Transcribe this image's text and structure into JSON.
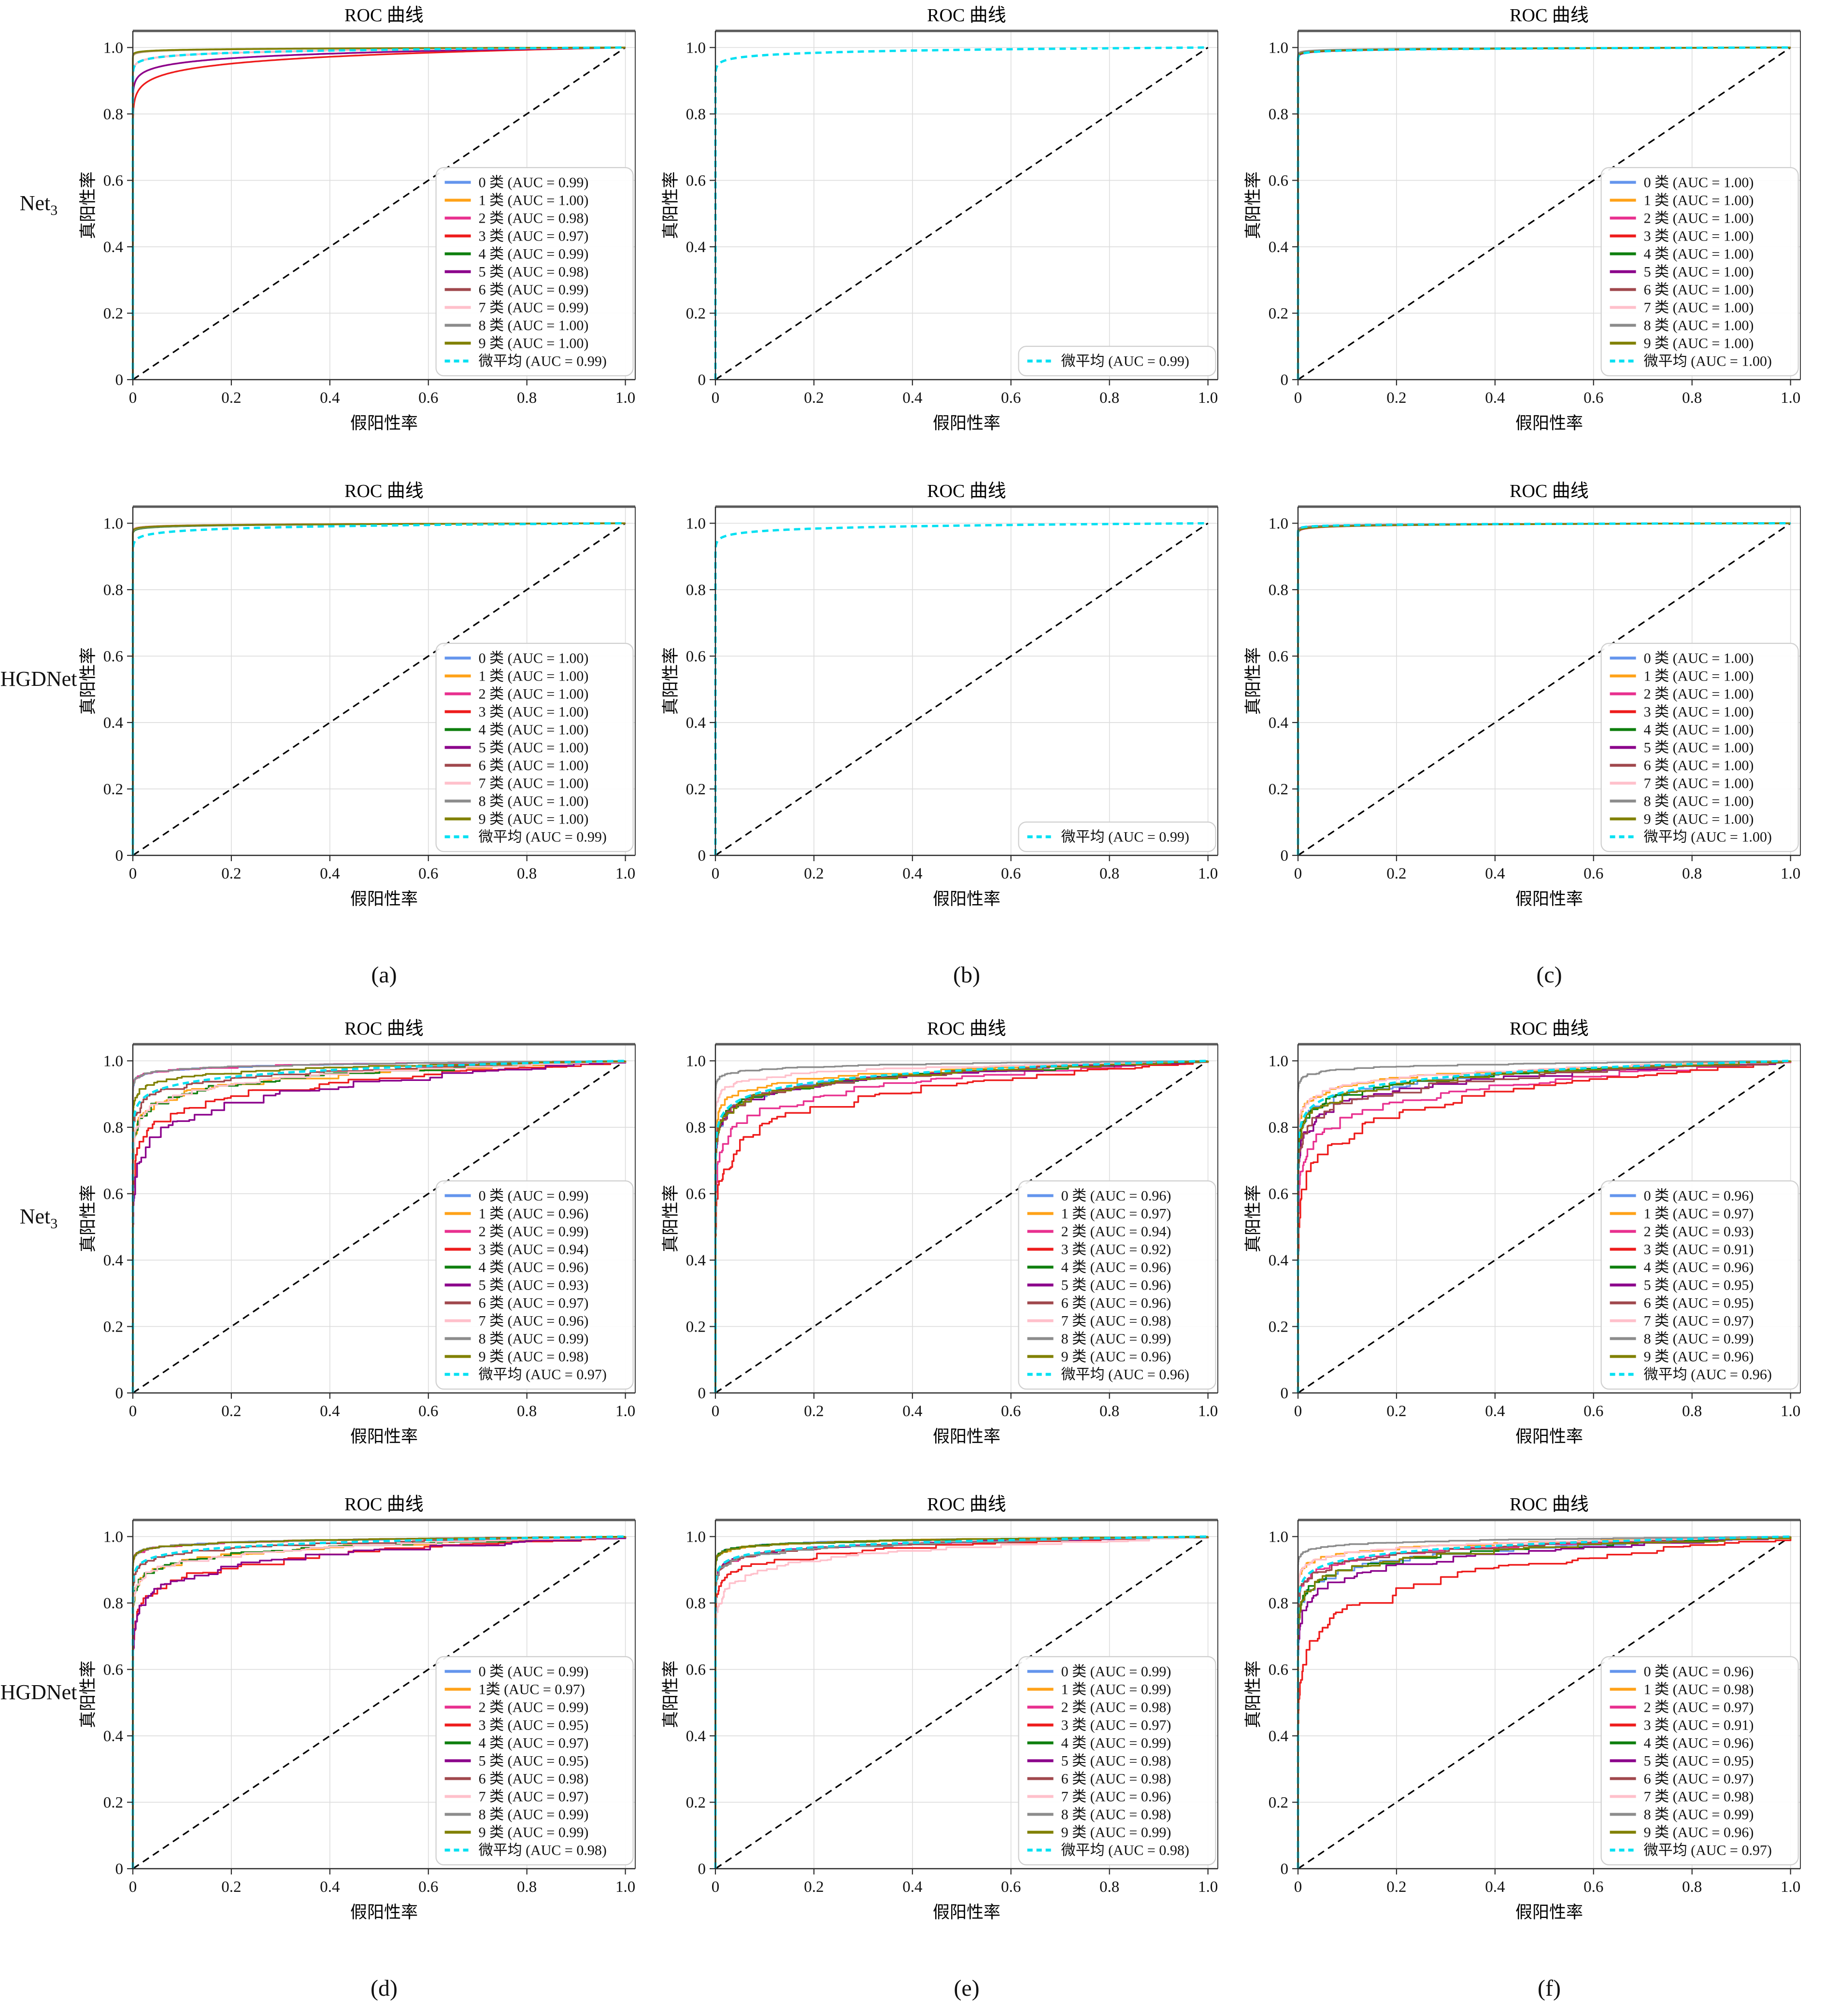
{
  "figure": {
    "suptitle": "ROC 曲线",
    "xlabel": "假阳性率",
    "ylabel": "真阳性率",
    "tick_values": [
      0,
      0.2,
      0.4,
      0.6,
      0.8,
      1.0
    ],
    "x_ticks": [
      "0",
      "0.2",
      "0.4",
      "0.6",
      "0.8",
      "1.0"
    ],
    "y_ticks": [
      "0",
      "0.2",
      "0.4",
      "0.6",
      "0.8",
      "1.0"
    ],
    "class_colors": [
      "#6495ED",
      "#FFA218",
      "#E8308F",
      "#EE1C1C",
      "#0E7F0E",
      "#8B008B",
      "#A0484D",
      "#FFC0CB",
      "#8C8C8C",
      "#808000"
    ],
    "micro_color": "#00E0F2",
    "diagonal_color": "#000000",
    "grid_color": "#DCDCDC",
    "spine_color": "#2B2B2B",
    "top_spine_color": "#5A5A5A",
    "legend_position": "lower right",
    "grid": true
  },
  "layout": {
    "rows": [
      {
        "label": "Net",
        "sub": "3"
      },
      {
        "label": "HGDNet",
        "sub": ""
      },
      {
        "label": "Net",
        "sub": "3"
      },
      {
        "label": "HGDNet",
        "sub": ""
      }
    ],
    "captions": [
      "(a)",
      "(b)",
      "(c)",
      "(d)",
      "(e)",
      "(f)"
    ]
  },
  "axes": {
    "xlim": [
      0,
      1
    ],
    "ylim": [
      0,
      1.05
    ],
    "diagonal": "chance line y = x, black dashed"
  },
  "chart_data": [
    {
      "type": "line",
      "panel": "(a)",
      "model": "Net3",
      "title": "ROC 曲线",
      "noisy": false,
      "series": [
        {
          "label": "0 类 (AUC = 0.99)",
          "auc": 0.99
        },
        {
          "label": "1 类 (AUC = 1.00)",
          "auc": 1.0
        },
        {
          "label": "2 类 (AUC = 0.98)",
          "auc": 0.98
        },
        {
          "label": "3 类 (AUC = 0.97)",
          "auc": 0.97
        },
        {
          "label": "4 类 (AUC = 0.99)",
          "auc": 0.99
        },
        {
          "label": "5 类 (AUC = 0.98)",
          "auc": 0.98
        },
        {
          "label": "6 类 (AUC = 0.99)",
          "auc": 0.99
        },
        {
          "label": "7 类 (AUC = 0.99)",
          "auc": 0.99
        },
        {
          "label": "8 类 (AUC = 1.00)",
          "auc": 1.0
        },
        {
          "label": "9 类 (AUC = 1.00)",
          "auc": 1.0
        },
        {
          "label": "微平均 (AUC = 0.99)",
          "auc": 0.99,
          "micro": true
        }
      ]
    },
    {
      "type": "line",
      "panel": "(b)",
      "model": "Net3",
      "title": "ROC 曲线",
      "noisy": false,
      "series": [
        {
          "label": "微平均 (AUC = 0.99)",
          "auc": 0.99,
          "micro": true
        }
      ]
    },
    {
      "type": "line",
      "panel": "(c)",
      "model": "Net3",
      "title": "ROC 曲线",
      "noisy": false,
      "series": [
        {
          "label": "0 类 (AUC = 1.00)",
          "auc": 1.0
        },
        {
          "label": "1 类 (AUC = 1.00)",
          "auc": 1.0
        },
        {
          "label": "2 类 (AUC = 1.00)",
          "auc": 1.0
        },
        {
          "label": "3 类 (AUC = 1.00)",
          "auc": 1.0
        },
        {
          "label": "4 类 (AUC = 1.00)",
          "auc": 1.0
        },
        {
          "label": "5 类 (AUC = 1.00)",
          "auc": 1.0
        },
        {
          "label": "6 类 (AUC = 1.00)",
          "auc": 1.0
        },
        {
          "label": "7 类 (AUC = 1.00)",
          "auc": 1.0
        },
        {
          "label": "8 类 (AUC = 1.00)",
          "auc": 1.0
        },
        {
          "label": "9 类 (AUC = 1.00)",
          "auc": 1.0
        },
        {
          "label": "微平均 (AUC = 1.00)",
          "auc": 1.0,
          "micro": true
        }
      ]
    },
    {
      "type": "line",
      "panel": "(a)",
      "model": "HGDNet",
      "title": "ROC 曲线",
      "noisy": false,
      "series": [
        {
          "label": "0 类 (AUC = 1.00)",
          "auc": 1.0
        },
        {
          "label": "1 类 (AUC = 1.00)",
          "auc": 1.0
        },
        {
          "label": "2 类 (AUC = 1.00)",
          "auc": 1.0
        },
        {
          "label": "3 类 (AUC = 1.00)",
          "auc": 1.0
        },
        {
          "label": "4 类 (AUC = 1.00)",
          "auc": 1.0
        },
        {
          "label": "5 类 (AUC = 1.00)",
          "auc": 1.0
        },
        {
          "label": "6 类 (AUC = 1.00)",
          "auc": 1.0
        },
        {
          "label": "7 类 (AUC = 1.00)",
          "auc": 1.0
        },
        {
          "label": "8 类 (AUC = 1.00)",
          "auc": 1.0
        },
        {
          "label": "9 类 (AUC = 1.00)",
          "auc": 1.0
        },
        {
          "label": "微平均 (AUC = 0.99)",
          "auc": 0.99,
          "micro": true
        }
      ]
    },
    {
      "type": "line",
      "panel": "(b)",
      "model": "HGDNet",
      "title": "ROC 曲线",
      "noisy": false,
      "series": [
        {
          "label": "微平均 (AUC = 0.99)",
          "auc": 0.99,
          "micro": true
        }
      ]
    },
    {
      "type": "line",
      "panel": "(c)",
      "model": "HGDNet",
      "title": "ROC 曲线",
      "noisy": false,
      "series": [
        {
          "label": "0 类 (AUC = 1.00)",
          "auc": 1.0
        },
        {
          "label": "1 类 (AUC = 1.00)",
          "auc": 1.0
        },
        {
          "label": "2 类 (AUC = 1.00)",
          "auc": 1.0
        },
        {
          "label": "3 类 (AUC = 1.00)",
          "auc": 1.0
        },
        {
          "label": "4 类 (AUC = 1.00)",
          "auc": 1.0
        },
        {
          "label": "5 类 (AUC = 1.00)",
          "auc": 1.0
        },
        {
          "label": "6 类 (AUC = 1.00)",
          "auc": 1.0
        },
        {
          "label": "7 类 (AUC = 1.00)",
          "auc": 1.0
        },
        {
          "label": "8 类 (AUC = 1.00)",
          "auc": 1.0
        },
        {
          "label": "9 类 (AUC = 1.00)",
          "auc": 1.0
        },
        {
          "label": "微平均 (AUC = 1.00)",
          "auc": 1.0,
          "micro": true
        }
      ]
    },
    {
      "type": "line",
      "panel": "(d)",
      "model": "Net3",
      "title": "ROC 曲线",
      "noisy": true,
      "series": [
        {
          "label": "0 类 (AUC = 0.99)",
          "auc": 0.99
        },
        {
          "label": "1 类 (AUC = 0.96)",
          "auc": 0.96
        },
        {
          "label": "2 类 (AUC = 0.99)",
          "auc": 0.99
        },
        {
          "label": "3 类 (AUC = 0.94)",
          "auc": 0.94
        },
        {
          "label": "4 类 (AUC = 0.96)",
          "auc": 0.96
        },
        {
          "label": "5 类 (AUC = 0.93)",
          "auc": 0.93
        },
        {
          "label": "6 类 (AUC = 0.97)",
          "auc": 0.97
        },
        {
          "label": "7 类 (AUC = 0.96)",
          "auc": 0.96
        },
        {
          "label": "8 类 (AUC = 0.99)",
          "auc": 0.99
        },
        {
          "label": "9 类 (AUC = 0.98)",
          "auc": 0.98
        },
        {
          "label": "微平均 (AUC = 0.97)",
          "auc": 0.97,
          "micro": true
        }
      ]
    },
    {
      "type": "line",
      "panel": "(e)",
      "model": "Net3",
      "title": "ROC 曲线",
      "noisy": true,
      "series": [
        {
          "label": "0 类 (AUC = 0.96)",
          "auc": 0.96
        },
        {
          "label": "1 类 (AUC = 0.97)",
          "auc": 0.97
        },
        {
          "label": "2 类 (AUC = 0.94)",
          "auc": 0.94
        },
        {
          "label": "3 类 (AUC = 0.92)",
          "auc": 0.92
        },
        {
          "label": "4 类 (AUC = 0.96)",
          "auc": 0.96
        },
        {
          "label": "5 类 (AUC = 0.96)",
          "auc": 0.96
        },
        {
          "label": "6 类 (AUC = 0.96)",
          "auc": 0.96
        },
        {
          "label": "7 类 (AUC = 0.98)",
          "auc": 0.98
        },
        {
          "label": "8 类 (AUC = 0.99)",
          "auc": 0.99
        },
        {
          "label": "9 类 (AUC = 0.96)",
          "auc": 0.96
        },
        {
          "label": "微平均 (AUC = 0.96)",
          "auc": 0.96,
          "micro": true
        }
      ]
    },
    {
      "type": "line",
      "panel": "(f)",
      "model": "Net3",
      "title": "ROC 曲线",
      "noisy": true,
      "series": [
        {
          "label": "0 类 (AUC = 0.96)",
          "auc": 0.96
        },
        {
          "label": "1 类 (AUC = 0.97)",
          "auc": 0.97
        },
        {
          "label": "2 类 (AUC = 0.93)",
          "auc": 0.93
        },
        {
          "label": "3 类 (AUC = 0.91)",
          "auc": 0.91
        },
        {
          "label": "4 类 (AUC = 0.96)",
          "auc": 0.96
        },
        {
          "label": "5 类 (AUC = 0.95)",
          "auc": 0.95
        },
        {
          "label": "6 类 (AUC = 0.95)",
          "auc": 0.95
        },
        {
          "label": "7 类 (AUC = 0.97)",
          "auc": 0.97
        },
        {
          "label": "8 类 (AUC = 0.99)",
          "auc": 0.99
        },
        {
          "label": "9 类 (AUC = 0.96)",
          "auc": 0.96
        },
        {
          "label": "微平均 (AUC = 0.96)",
          "auc": 0.96,
          "micro": true
        }
      ]
    },
    {
      "type": "line",
      "panel": "(d)",
      "model": "HGDNet",
      "title": "ROC 曲线",
      "noisy": true,
      "series": [
        {
          "label": "0 类 (AUC = 0.99)",
          "auc": 0.99
        },
        {
          "label": "1类 (AUC = 0.97)",
          "auc": 0.97
        },
        {
          "label": "2 类 (AUC = 0.99)",
          "auc": 0.99
        },
        {
          "label": "3 类 (AUC = 0.95)",
          "auc": 0.95
        },
        {
          "label": "4 类 (AUC = 0.97)",
          "auc": 0.97
        },
        {
          "label": "5 类 (AUC = 0.95)",
          "auc": 0.95
        },
        {
          "label": "6 类 (AUC = 0.98)",
          "auc": 0.98
        },
        {
          "label": "7 类 (AUC = 0.97)",
          "auc": 0.97
        },
        {
          "label": "8 类 (AUC = 0.99)",
          "auc": 0.99
        },
        {
          "label": "9 类 (AUC = 0.99)",
          "auc": 0.99
        },
        {
          "label": "微平均 (AUC = 0.98)",
          "auc": 0.98,
          "micro": true
        }
      ]
    },
    {
      "type": "line",
      "panel": "(e)",
      "model": "HGDNet",
      "title": "ROC 曲线",
      "noisy": true,
      "series": [
        {
          "label": "0 类 (AUC = 0.99)",
          "auc": 0.99
        },
        {
          "label": "1 类 (AUC = 0.99)",
          "auc": 0.99
        },
        {
          "label": "2 类 (AUC = 0.98)",
          "auc": 0.98
        },
        {
          "label": "3 类 (AUC = 0.97)",
          "auc": 0.97
        },
        {
          "label": "4 类 (AUC = 0.99)",
          "auc": 0.99
        },
        {
          "label": "5 类 (AUC = 0.98)",
          "auc": 0.98
        },
        {
          "label": "6 类 (AUC = 0.98)",
          "auc": 0.98
        },
        {
          "label": "7 类 (AUC = 0.96)",
          "auc": 0.96
        },
        {
          "label": "8 类 (AUC = 0.98)",
          "auc": 0.98
        },
        {
          "label": "9 类 (AUC = 0.99)",
          "auc": 0.99
        },
        {
          "label": "微平均 (AUC = 0.98)",
          "auc": 0.98,
          "micro": true
        }
      ]
    },
    {
      "type": "line",
      "panel": "(f)",
      "model": "HGDNet",
      "title": "ROC 曲线",
      "noisy": true,
      "series": [
        {
          "label": "0 类 (AUC = 0.96)",
          "auc": 0.96
        },
        {
          "label": "1 类 (AUC = 0.98)",
          "auc": 0.98
        },
        {
          "label": "2 类 (AUC = 0.97)",
          "auc": 0.97
        },
        {
          "label": "3 类 (AUC = 0.91)",
          "auc": 0.91
        },
        {
          "label": "4 类 (AUC = 0.96)",
          "auc": 0.96
        },
        {
          "label": "5 类 (AUC = 0.95)",
          "auc": 0.95
        },
        {
          "label": "6 类 (AUC = 0.97)",
          "auc": 0.97
        },
        {
          "label": "7 类 (AUC = 0.98)",
          "auc": 0.98
        },
        {
          "label": "8 类 (AUC = 0.99)",
          "auc": 0.99
        },
        {
          "label": "9 类 (AUC = 0.96)",
          "auc": 0.96
        },
        {
          "label": "微平均 (AUC = 0.97)",
          "auc": 0.97,
          "micro": true
        }
      ]
    }
  ]
}
